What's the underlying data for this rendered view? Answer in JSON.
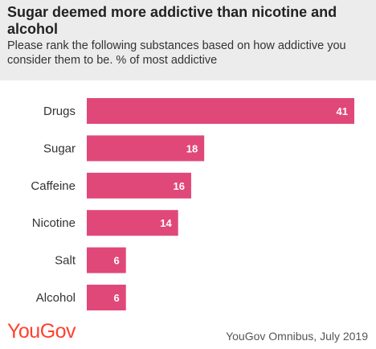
{
  "header": {
    "title": "Sugar deemed more addictive than nicotine and alcohol",
    "subtitle": "Please rank the following substances based on how addictive you consider them to be. % of most addictive"
  },
  "footer": {
    "logo_text": "YouGov",
    "source": "YouGov Omnibus, July 2019"
  },
  "colors": {
    "bar": "#e0487a",
    "logo": "#ff412c",
    "header_bg": "#ececec"
  },
  "chart_data": {
    "type": "bar",
    "orientation": "horizontal",
    "categories": [
      "Drugs",
      "Sugar",
      "Caffeine",
      "Nicotine",
      "Salt",
      "Alcohol"
    ],
    "values": [
      41,
      18,
      16,
      14,
      6,
      6
    ],
    "title": "Sugar deemed more addictive than nicotine and alcohol",
    "xlabel": "",
    "ylabel": "",
    "xlim": [
      0,
      41
    ],
    "grid": false,
    "legend": "none"
  }
}
